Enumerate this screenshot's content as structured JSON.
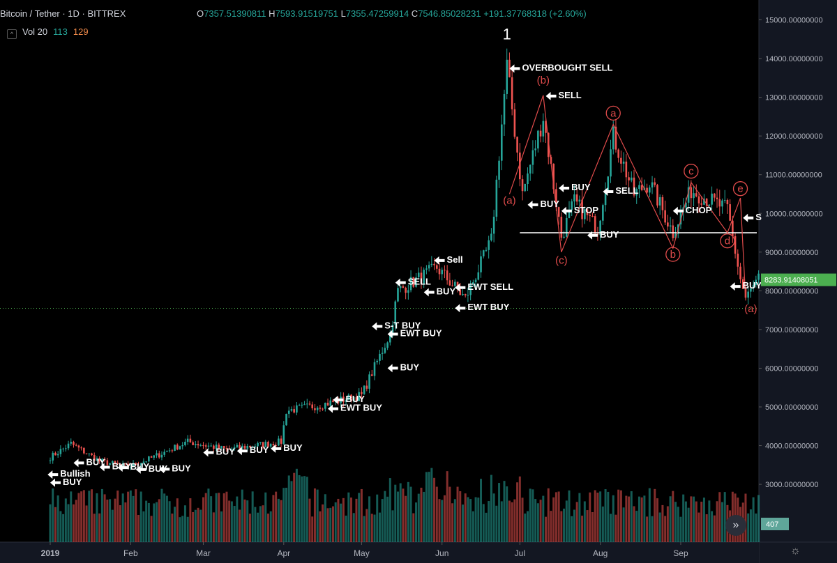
{
  "header": {
    "symbol": "Bitcoin / Tether · 1D · BITTREX",
    "open_label": "O",
    "open": "7357.51390811",
    "high_label": "H",
    "high": "7593.91519751",
    "low_label": "L",
    "low": "7355.47259914",
    "close_label": "C",
    "close": "7546.85028231",
    "change": "+191.37768318 (+2.60%)"
  },
  "volume_legend": {
    "label": "Vol 20",
    "v1": "113",
    "v2": "129"
  },
  "controls": {
    "scroll_icon": "double-chevron-right-icon",
    "scroll_glyph": "»",
    "settings_icon": "gear-icon",
    "settings_glyph": "☼"
  },
  "colors": {
    "up": "#26a69a",
    "down": "#ef5350",
    "annotation": "#e04b4b",
    "last_price_badge": "#4caf50",
    "volume_badge": "#5fa69a"
  },
  "chart_data": {
    "type": "candlestick",
    "x_ticks": [
      "2019",
      "Feb",
      "Mar",
      "Apr",
      "May",
      "Jun",
      "Jul",
      "Aug",
      "Sep"
    ],
    "y_ticks": [
      "3000.00000000",
      "4000.00000000",
      "5000.00000000",
      "6000.00000000",
      "7000.00000000",
      "8000.00000000",
      "9000.00000000",
      "10000.00000000",
      "11000.00000000",
      "12000.00000000",
      "13000.00000000",
      "14000.00000000",
      "15000.00000000"
    ],
    "ylim": [
      2500,
      15150
    ],
    "last_price": "8283.91408051",
    "volume_badge": "407",
    "low_price_level": 7546.85,
    "support_level": 9500,
    "price_path": [
      [
        "2019-01-01",
        3700
      ],
      [
        "2019-01-09",
        4050
      ],
      [
        "2019-01-20",
        3600
      ],
      [
        "2019-01-31",
        3450
      ],
      [
        "2019-02-08",
        3650
      ],
      [
        "2019-02-23",
        4100
      ],
      [
        "2019-03-10",
        3900
      ],
      [
        "2019-03-31",
        4100
      ],
      [
        "2019-04-02",
        4900
      ],
      [
        "2019-04-15",
        5050
      ],
      [
        "2019-05-01",
        5300
      ],
      [
        "2019-05-12",
        6900
      ],
      [
        "2019-05-15",
        8000
      ],
      [
        "2019-05-30",
        8600
      ],
      [
        "2019-06-10",
        7800
      ],
      [
        "2019-06-20",
        9300
      ],
      [
        "2019-06-26",
        13800
      ],
      [
        "2019-07-02",
        10500
      ],
      [
        "2019-07-10",
        12500
      ],
      [
        "2019-07-17",
        9400
      ],
      [
        "2019-07-22",
        10300
      ],
      [
        "2019-07-31",
        9600
      ],
      [
        "2019-08-06",
        12000
      ],
      [
        "2019-08-14",
        10500
      ],
      [
        "2019-08-20",
        10800
      ],
      [
        "2019-08-29",
        9500
      ],
      [
        "2019-09-05",
        10600
      ],
      [
        "2019-09-19",
        10100
      ],
      [
        "2019-09-24",
        8300
      ],
      [
        "2019-09-26",
        7800
      ],
      [
        "2019-10-01",
        8300
      ]
    ],
    "wave_path": [
      [
        "2019-06-27",
        10500
      ],
      [
        "2019-07-10",
        13050
      ],
      [
        "2019-07-17",
        9000
      ],
      [
        "2019-08-06",
        12300
      ],
      [
        "2019-08-29",
        9100
      ],
      [
        "2019-09-05",
        10800
      ],
      [
        "2019-09-19",
        9500
      ],
      [
        "2019-09-24",
        10400
      ],
      [
        "2019-09-26",
        7800
      ]
    ],
    "wave_labels": [
      {
        "text": "(a)",
        "date": "2019-06-27",
        "price": 10250,
        "circle": false
      },
      {
        "text": "(b)",
        "date": "2019-07-10",
        "price": 13350,
        "circle": false
      },
      {
        "text": "(c)",
        "date": "2019-07-17",
        "price": 8700,
        "circle": false
      },
      {
        "text": "a",
        "date": "2019-08-06",
        "price": 12500,
        "circle": true
      },
      {
        "text": "b",
        "date": "2019-08-29",
        "price": 8850,
        "circle": true
      },
      {
        "text": "c",
        "date": "2019-09-05",
        "price": 11000,
        "circle": true
      },
      {
        "text": "d",
        "date": "2019-09-19",
        "price": 9200,
        "circle": true
      },
      {
        "text": "e",
        "date": "2019-09-24",
        "price": 10550,
        "circle": true
      },
      {
        "text": "(a)",
        "date": "2019-09-28",
        "price": 7450,
        "circle": false
      }
    ],
    "wave_top_label": {
      "text": "1",
      "date": "2019-06-26",
      "price": 14500
    },
    "signals": [
      {
        "text": "Bullish",
        "date": "2018-12-31",
        "price": 3180
      },
      {
        "text": "BUY",
        "date": "2019-01-01",
        "price": 2970
      },
      {
        "text": "BUY",
        "date": "2019-01-10",
        "price": 3480
      },
      {
        "text": "BUY",
        "date": "2019-01-20",
        "price": 3370
      },
      {
        "text": "BUY",
        "date": "2019-01-27",
        "price": 3360
      },
      {
        "text": "BUY",
        "date": "2019-02-03",
        "price": 3310
      },
      {
        "text": "BUY",
        "date": "2019-02-12",
        "price": 3320
      },
      {
        "text": "BUY",
        "date": "2019-03-01",
        "price": 3750
      },
      {
        "text": "BUY",
        "date": "2019-03-14",
        "price": 3790
      },
      {
        "text": "BUY",
        "date": "2019-03-27",
        "price": 3850
      },
      {
        "text": "BUY",
        "date": "2019-04-20",
        "price": 5110
      },
      {
        "text": "EWT BUY",
        "date": "2019-04-18",
        "price": 4880
      },
      {
        "text": "BUY",
        "date": "2019-05-11",
        "price": 5930
      },
      {
        "text": "S-T BUY",
        "date": "2019-05-05",
        "price": 7010
      },
      {
        "text": "EWT BUY",
        "date": "2019-05-11",
        "price": 6810
      },
      {
        "text": "SELL",
        "date": "2019-05-14",
        "price": 8140
      },
      {
        "text": "BUY",
        "date": "2019-05-25",
        "price": 7890
      },
      {
        "text": "Sell",
        "date": "2019-05-29",
        "price": 8710
      },
      {
        "text": "EWT SELL",
        "date": "2019-06-06",
        "price": 8010
      },
      {
        "text": "EWT BUY",
        "date": "2019-06-06",
        "price": 7480
      },
      {
        "text": "OVERBOUGHT SELL",
        "date": "2019-06-27",
        "price": 13670
      },
      {
        "text": "SELL",
        "date": "2019-07-11",
        "price": 12960
      },
      {
        "text": "BUY",
        "date": "2019-07-04",
        "price": 10150
      },
      {
        "text": "BUY",
        "date": "2019-07-16",
        "price": 10580
      },
      {
        "text": "STOP",
        "date": "2019-07-17",
        "price": 9990
      },
      {
        "text": "BUY",
        "date": "2019-07-27",
        "price": 9360
      },
      {
        "text": "SELL",
        "date": "2019-08-02",
        "price": 10490
      },
      {
        "text": "CHOP",
        "date": "2019-08-29",
        "price": 9990
      },
      {
        "text": "S",
        "date": "2019-09-25",
        "price": 9810
      },
      {
        "text": "BUY",
        "date": "2019-09-20",
        "price": 8040
      }
    ]
  }
}
